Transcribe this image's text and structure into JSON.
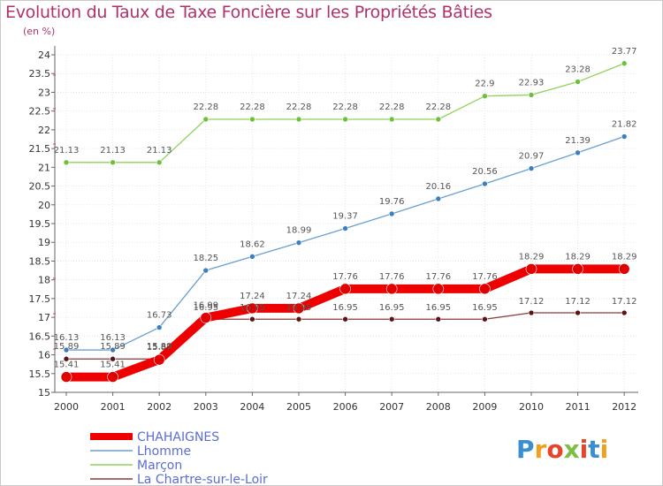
{
  "page": {
    "title": "Evolution du Taux de Taxe Foncière sur les Propriétés Bâties",
    "unit": "(en %)",
    "logo_text": "Proxiti"
  },
  "chart_data": {
    "type": "line",
    "title": "Evolution du Taux de Taxe Foncière sur les Propriétés Bâties",
    "ylabel": "(en %)",
    "xlabel": "",
    "ylim": [
      15,
      24
    ],
    "yticks": [
      15,
      15.5,
      16,
      16.5,
      17,
      17.5,
      18,
      18.5,
      19,
      19.5,
      20,
      20.5,
      21,
      21.5,
      22,
      22.5,
      23,
      23.5,
      24
    ],
    "categories": [
      "2000",
      "2001",
      "2002",
      "2003",
      "2004",
      "2005",
      "2006",
      "2007",
      "2008",
      "2009",
      "2010",
      "2011",
      "2012"
    ],
    "grid": true,
    "legend_position": "bottom-left",
    "series": [
      {
        "name": "CHAHAIGNES",
        "color": "#ee0000",
        "values": [
          15.41,
          15.41,
          15.87,
          16.99,
          17.24,
          17.24,
          17.76,
          17.76,
          17.76,
          17.76,
          18.29,
          18.29,
          18.29
        ]
      },
      {
        "name": "Lhomme",
        "color": "#6b9fd0",
        "values": [
          16.13,
          16.13,
          16.73,
          18.25,
          18.62,
          18.99,
          19.37,
          19.76,
          20.16,
          20.56,
          20.97,
          21.39,
          21.82
        ]
      },
      {
        "name": "Marçon",
        "color": "#8fd35a",
        "values": [
          21.13,
          21.13,
          21.13,
          22.28,
          22.28,
          22.28,
          22.28,
          22.28,
          22.28,
          22.9,
          22.93,
          23.28,
          23.77
        ]
      },
      {
        "name": "La Chartre-sur-le-Loir",
        "color": "#8a3a3a",
        "values": [
          15.89,
          15.89,
          15.89,
          16.95,
          16.95,
          16.95,
          16.95,
          16.95,
          16.95,
          16.95,
          17.12,
          17.12,
          17.12
        ]
      }
    ]
  }
}
